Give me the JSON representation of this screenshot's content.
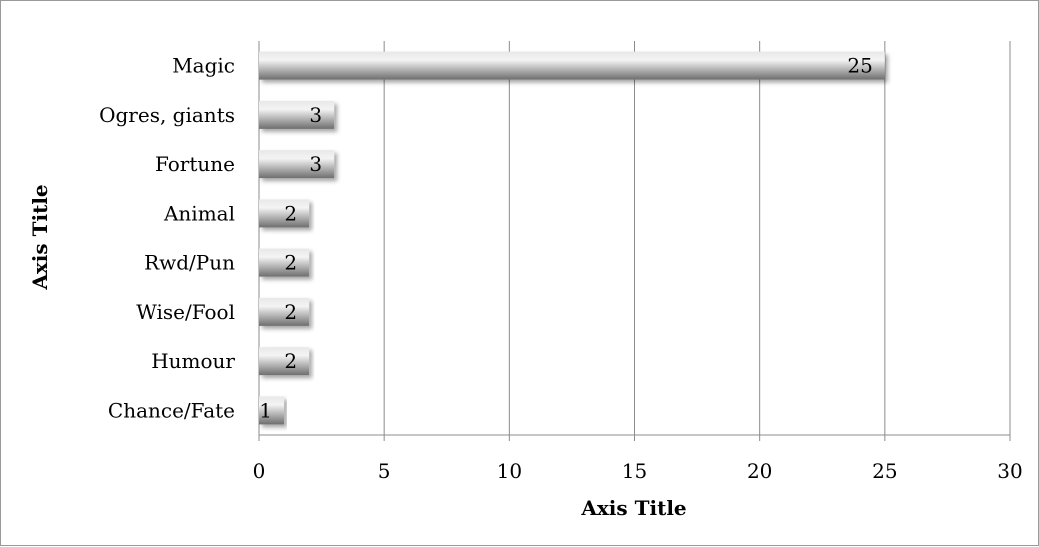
{
  "chart_data": {
    "type": "bar",
    "orientation": "horizontal",
    "categories": [
      "Magic",
      "Ogres, giants",
      "Fortune",
      "Animal",
      "Rwd/Pun",
      "Wise/Fool",
      "Humour",
      "Chance/Fate"
    ],
    "values": [
      25,
      3,
      3,
      2,
      2,
      2,
      2,
      1
    ],
    "data_labels": [
      "25",
      "3",
      "3",
      "2",
      "2",
      "2",
      "2",
      "1"
    ],
    "xlabel": "Axis Title",
    "ylabel": "Axis Title",
    "xlim": [
      0,
      30
    ],
    "xticks": [
      0,
      5,
      10,
      15,
      20,
      25,
      30
    ],
    "grid": true,
    "legend": "none",
    "bar_color": "#8a8a8a",
    "bar_highlight": "#efefef",
    "grid_color": "#8c8c8c"
  }
}
